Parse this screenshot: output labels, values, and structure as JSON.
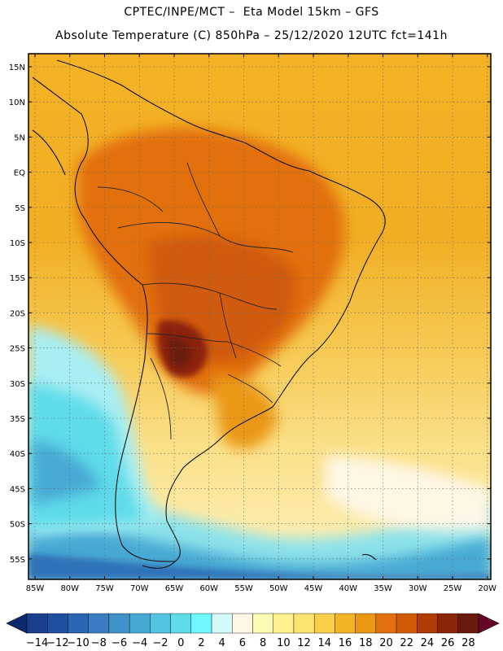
{
  "header": {
    "line1": "CPTEC/INPE/MCT –  Eta Model 15km – GFS",
    "line2": "Absolute Temperature (C) 850hPa – 25/12/2020 12UTC fct=141h"
  },
  "map": {
    "lon_labels": [
      "85W",
      "80W",
      "75W",
      "70W",
      "65W",
      "60W",
      "55W",
      "50W",
      "45W",
      "40W",
      "35W",
      "30W",
      "25W",
      "20W"
    ],
    "lat_labels": [
      "15N",
      "10N",
      "5N",
      "EQ",
      "5S",
      "10S",
      "15S",
      "20S",
      "25S",
      "30S",
      "35S",
      "40S",
      "45S",
      "50S",
      "55S"
    ],
    "lon_range": [
      -86,
      -19
    ],
    "lat_range": [
      17,
      -58
    ]
  },
  "colorbar": {
    "labels": [
      "-14",
      "-12",
      "-10",
      "-8",
      "-6",
      "-4",
      "-2",
      "0",
      "2",
      "4",
      "6",
      "8",
      "10",
      "12",
      "14",
      "16",
      "18",
      "20",
      "22",
      "24",
      "26",
      "28"
    ],
    "colors": [
      "#1a3f8c",
      "#1f4fa0",
      "#2a66b3",
      "#3a7dc2",
      "#3f93c9",
      "#46a9d4",
      "#52c3e0",
      "#5fdbe9",
      "#6ff8ff",
      "#d3f9fb",
      "#fff7e6",
      "#fefbb5",
      "#fdf28d",
      "#fde370",
      "#f8cf49",
      "#f2b324",
      "#ea9814",
      "#e2700c",
      "#d05a08",
      "#b13c06",
      "#8c2407",
      "#6b1b0e"
    ],
    "under_color": "#0e2a6e",
    "over_color": "#690524"
  }
}
